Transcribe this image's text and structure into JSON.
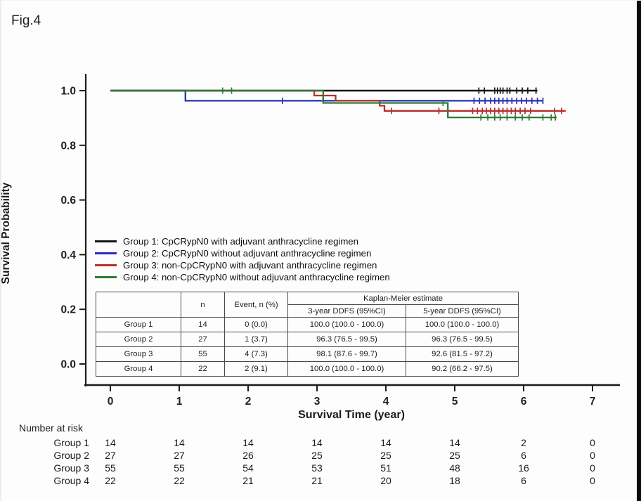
{
  "figure": {
    "label": "Fig.4"
  },
  "axes": {
    "x_title": "Survival Time (year)",
    "y_title": "Survival Probability",
    "x_ticks": [
      "0",
      "1",
      "2",
      "3",
      "4",
      "5",
      "6",
      "7"
    ],
    "y_ticks": [
      "1.0",
      "0.8",
      "0.6",
      "0.4",
      "0.2",
      "0.0"
    ]
  },
  "legend": {
    "items": [
      {
        "label": "Group 1: CpCRypN0 with adjuvant anthracycline regimen",
        "color": "#161616"
      },
      {
        "label": "Group 2: CpCRypN0 without adjuvant anthracycline regimen",
        "color": "#2a2fb4"
      },
      {
        "label": "Group 3: non-CpCRypN0 with adjuvant anthracycline regimen",
        "color": "#b5302f"
      },
      {
        "label": "Group 4: non-CpCRypN0 without adjuvant anthracycline regimen",
        "color": "#2c7a34"
      }
    ]
  },
  "stats_table": {
    "left_headers": [
      "",
      "n",
      "Event, n (%)"
    ],
    "km_header": "Kaplan-Meier estimate",
    "km_subheaders": [
      "3-year DDFS (95%CI)",
      "5-year DDFS (95%CI)"
    ],
    "rows": [
      [
        "Group 1",
        "14",
        "0 (0.0)",
        "100.0 (100.0 - 100.0)",
        "100.0 (100.0 - 100.0)"
      ],
      [
        "Group 2",
        "27",
        "1 (3.7)",
        "96.3 (76.5 - 99.5)",
        "96.3 (76.5 - 99.5)"
      ],
      [
        "Group 3",
        "55",
        "4 (7.3)",
        "98.1 (87.6 - 99.7)",
        "92.6 (81.5 - 97.2)"
      ],
      [
        "Group 4",
        "22",
        "2 (9.1)",
        "100.0 (100.0 - 100.0)",
        "90.2 (66.2 - 97.5)"
      ]
    ]
  },
  "number_at_risk": {
    "title": "Number at risk",
    "times": [
      0,
      1,
      2,
      3,
      4,
      5,
      6,
      7
    ],
    "rows": [
      {
        "label": "Group 1",
        "values": [
          "14",
          "14",
          "14",
          "14",
          "14",
          "14",
          "2",
          "0"
        ]
      },
      {
        "label": "Group 2",
        "values": [
          "27",
          "27",
          "26",
          "25",
          "25",
          "25",
          "6",
          "0"
        ]
      },
      {
        "label": "Group 3",
        "values": [
          "55",
          "55",
          "54",
          "53",
          "51",
          "48",
          "16",
          "0"
        ]
      },
      {
        "label": "Group 4",
        "values": [
          "22",
          "22",
          "21",
          "21",
          "20",
          "18",
          "6",
          "0"
        ]
      }
    ]
  },
  "chart_data": {
    "type": "line",
    "subtype": "kaplan-meier-step",
    "title": "Fig.4",
    "xlabel": "Survival Time (year)",
    "ylabel": "Survival Probability",
    "xlim": [
      0,
      7
    ],
    "ylim": [
      0.0,
      1.0
    ],
    "xticks": [
      0,
      1,
      2,
      3,
      4,
      5,
      6,
      7
    ],
    "yticks": [
      1.0,
      0.8,
      0.6,
      0.4,
      0.2,
      0.0
    ],
    "grid": false,
    "legend_position": "inside-left-middle",
    "series": [
      {
        "name": "Group 1: CpCRypN0 with adjuvant anthracycline regimen",
        "color": "#161616",
        "steps": [
          [
            0,
            1.0
          ],
          [
            6.2,
            1.0
          ]
        ],
        "censors": [
          [
            5.35,
            1.0
          ],
          [
            5.43,
            1.0
          ],
          [
            5.58,
            1.0
          ],
          [
            5.62,
            1.0
          ],
          [
            5.66,
            1.0
          ],
          [
            5.7,
            1.0
          ],
          [
            5.76,
            1.0
          ],
          [
            5.8,
            1.0
          ],
          [
            5.9,
            1.0
          ],
          [
            5.98,
            1.0
          ],
          [
            6.06,
            1.0
          ],
          [
            6.18,
            1.0
          ]
        ]
      },
      {
        "name": "Group 2: CpCRypN0 without adjuvant anthracycline regimen",
        "color": "#2a2fb4",
        "steps": [
          [
            0,
            1.0
          ],
          [
            1.09,
            1.0
          ],
          [
            1.09,
            0.963
          ],
          [
            6.28,
            0.963
          ]
        ],
        "censors": [
          [
            2.5,
            0.963
          ],
          [
            5.28,
            0.963
          ],
          [
            5.36,
            0.963
          ],
          [
            5.44,
            0.963
          ],
          [
            5.52,
            0.963
          ],
          [
            5.58,
            0.963
          ],
          [
            5.64,
            0.963
          ],
          [
            5.7,
            0.963
          ],
          [
            5.76,
            0.963
          ],
          [
            5.83,
            0.963
          ],
          [
            5.9,
            0.963
          ],
          [
            5.97,
            0.963
          ],
          [
            6.04,
            0.963
          ],
          [
            6.12,
            0.963
          ],
          [
            6.2,
            0.963
          ],
          [
            6.28,
            0.963
          ]
        ]
      },
      {
        "name": "Group 3: non-CpCRypN0 with adjuvant anthracycline regimen",
        "color": "#b5302f",
        "steps": [
          [
            0,
            1.0
          ],
          [
            2.96,
            1.0
          ],
          [
            2.96,
            0.982
          ],
          [
            3.27,
            0.982
          ],
          [
            3.27,
            0.963
          ],
          [
            3.91,
            0.963
          ],
          [
            3.91,
            0.945
          ],
          [
            3.98,
            0.945
          ],
          [
            3.98,
            0.926
          ],
          [
            6.61,
            0.926
          ]
        ],
        "censors": [
          [
            4.08,
            0.926
          ],
          [
            4.77,
            0.926
          ],
          [
            5.26,
            0.926
          ],
          [
            5.33,
            0.926
          ],
          [
            5.4,
            0.926
          ],
          [
            5.46,
            0.926
          ],
          [
            5.52,
            0.926
          ],
          [
            5.58,
            0.926
          ],
          [
            5.64,
            0.926
          ],
          [
            5.7,
            0.926
          ],
          [
            5.76,
            0.926
          ],
          [
            5.82,
            0.926
          ],
          [
            5.88,
            0.926
          ],
          [
            5.95,
            0.926
          ],
          [
            6.02,
            0.926
          ],
          [
            6.1,
            0.926
          ],
          [
            6.45,
            0.926
          ],
          [
            6.55,
            0.926
          ]
        ]
      },
      {
        "name": "Group 4: non-CpCRypN0 without adjuvant anthracycline regimen",
        "color": "#2c7a34",
        "steps": [
          [
            0,
            1.0
          ],
          [
            3.09,
            1.0
          ],
          [
            3.09,
            0.955
          ],
          [
            4.9,
            0.955
          ],
          [
            4.9,
            0.902
          ],
          [
            6.48,
            0.902
          ]
        ],
        "censors": [
          [
            1.63,
            1.0
          ],
          [
            1.76,
            1.0
          ],
          [
            4.83,
            0.955
          ],
          [
            5.38,
            0.902
          ],
          [
            5.48,
            0.902
          ],
          [
            5.58,
            0.902
          ],
          [
            5.66,
            0.902
          ],
          [
            5.76,
            0.902
          ],
          [
            5.88,
            0.902
          ],
          [
            5.98,
            0.902
          ],
          [
            6.08,
            0.902
          ],
          [
            6.28,
            0.902
          ],
          [
            6.4,
            0.902
          ],
          [
            6.46,
            0.902
          ]
        ]
      }
    ]
  }
}
